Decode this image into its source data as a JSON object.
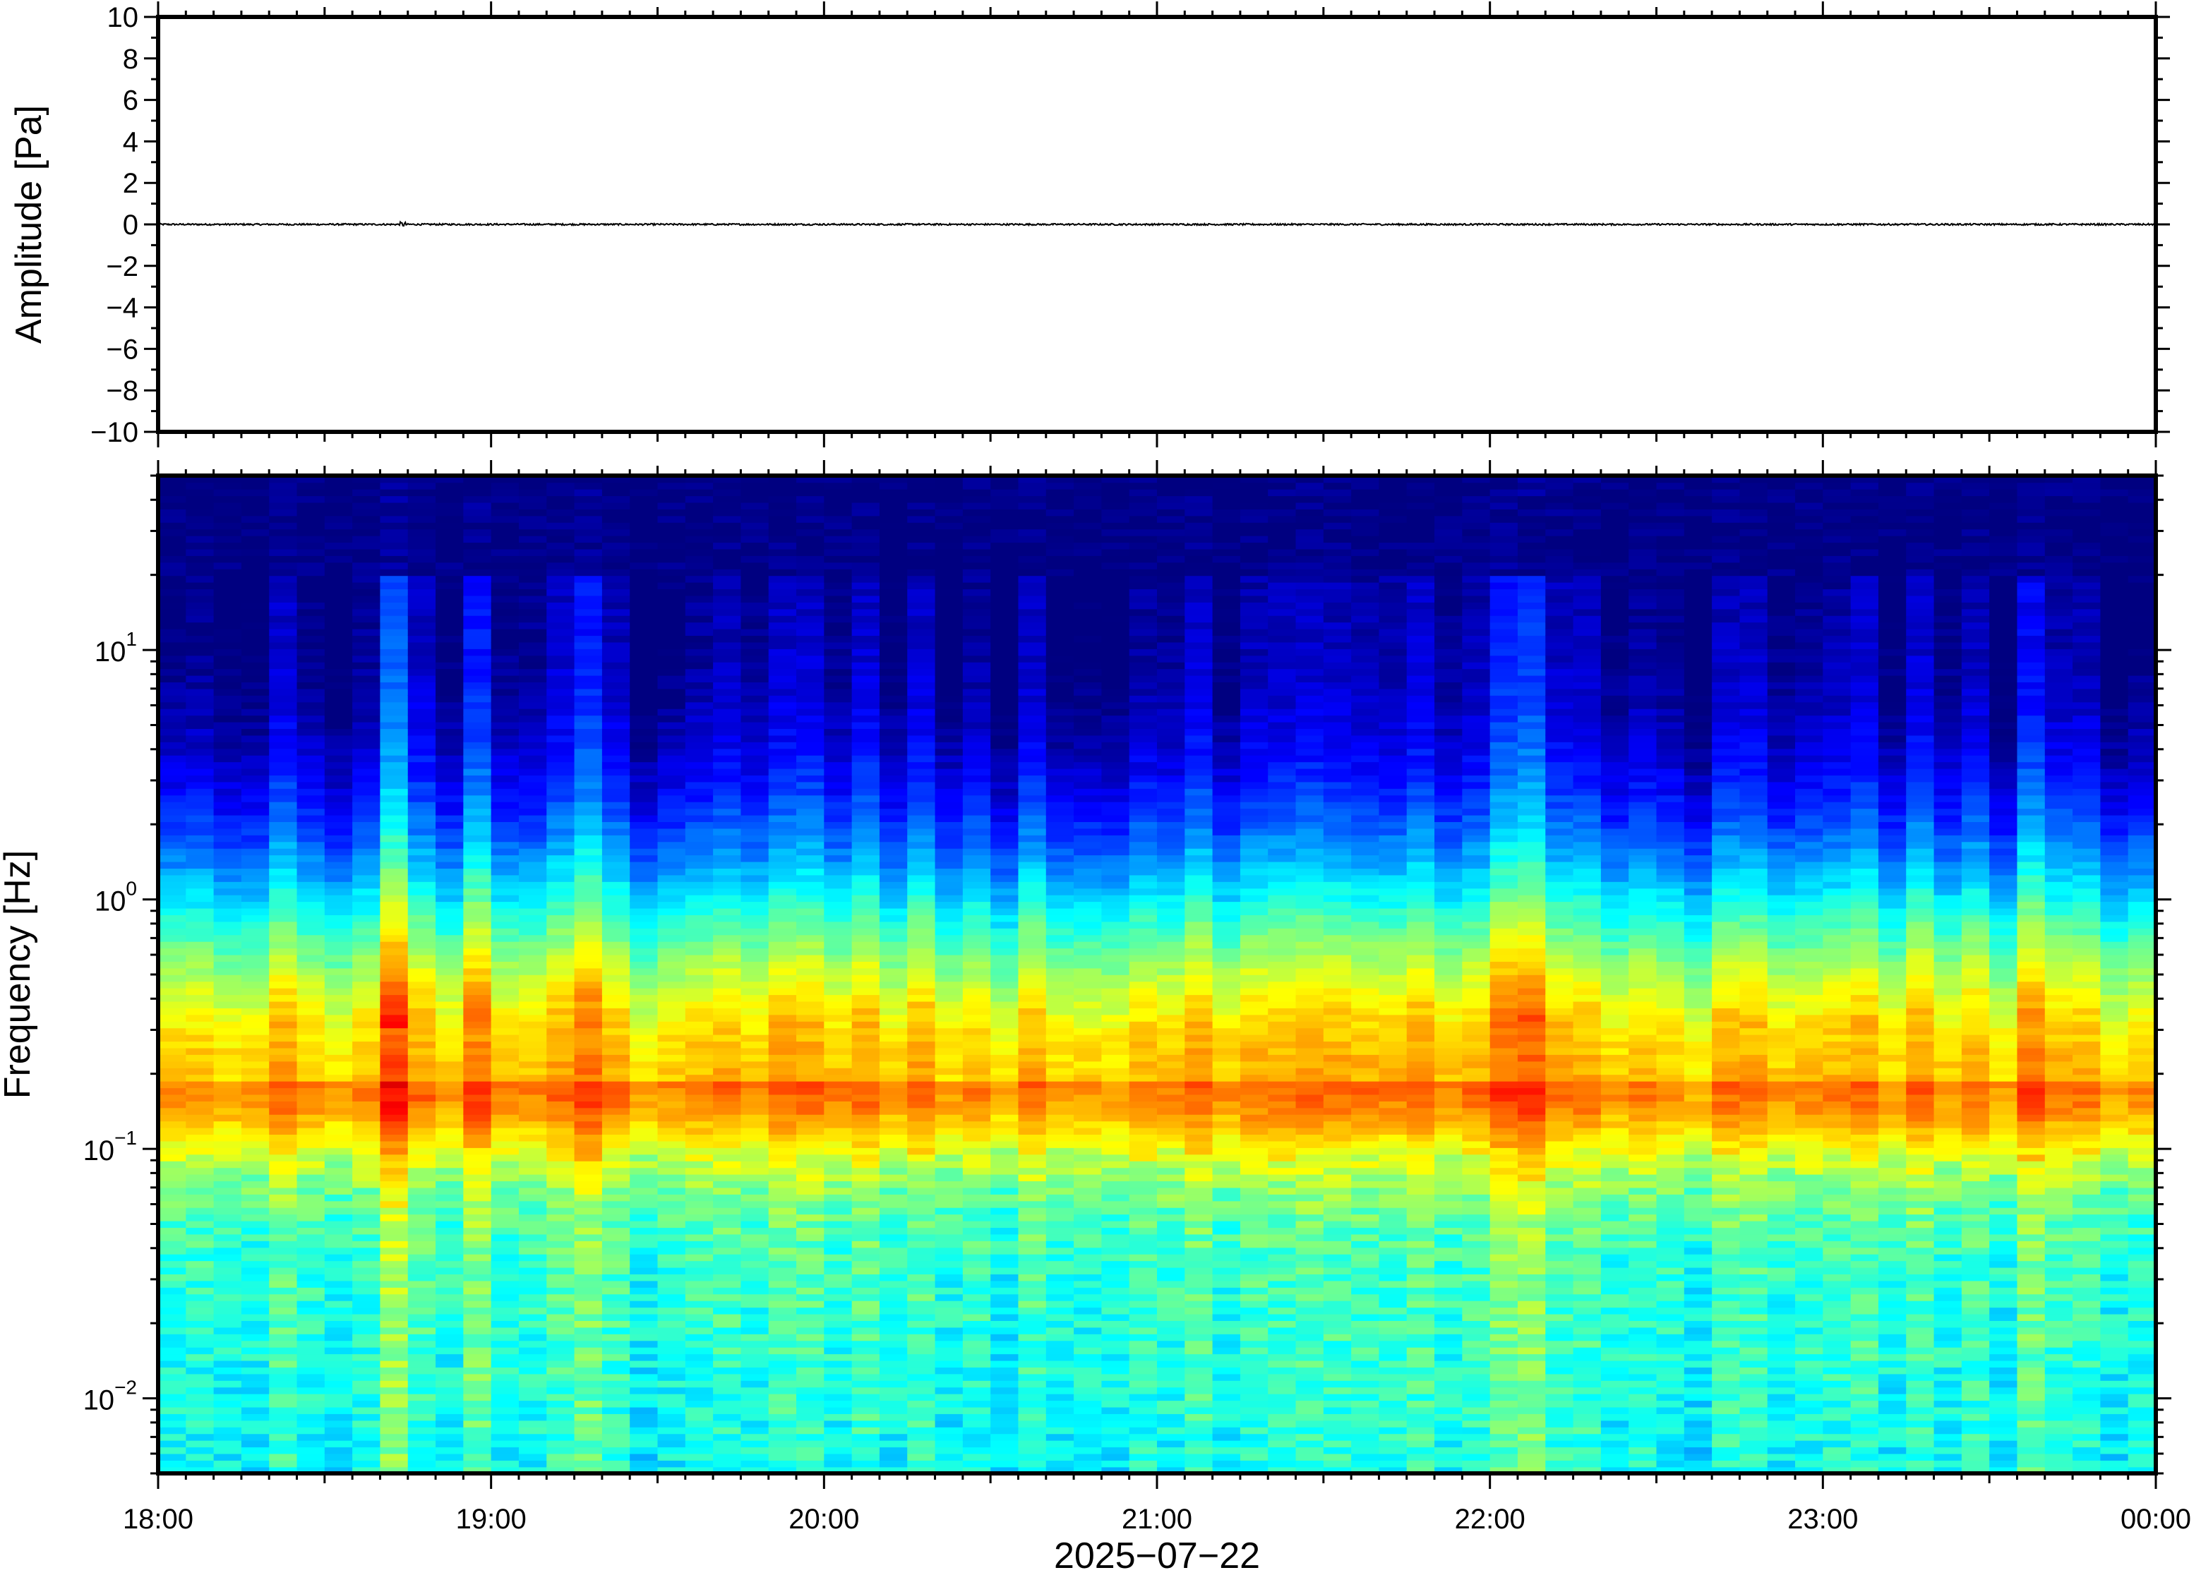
{
  "chart_data": [
    {
      "type": "line",
      "panel": "waveform",
      "ylabel": "Amplitude [Pa]",
      "ylim": [
        -10,
        10
      ],
      "yticks": [
        -10,
        -8,
        -6,
        -4,
        -2,
        0,
        2,
        4,
        6,
        8,
        10
      ],
      "ytick_labels": [
        "−10",
        "−8",
        "−6",
        "−4",
        "−2",
        "0",
        "2",
        "4",
        "6",
        "8",
        "10"
      ],
      "series": [
        {
          "x": [
            "18:00",
            "00:00"
          ],
          "values": [
            0.0,
            0.0
          ]
        }
      ],
      "grid": false
    },
    {
      "type": "heatmap",
      "panel": "spectrogram",
      "ylabel": "Frequency [Hz]",
      "yscale": "log",
      "ylim": [
        0.005,
        50
      ],
      "yticks": [
        0.01,
        0.1,
        1,
        10
      ],
      "ytick_labels": [
        {
          "base": "10",
          "exp": "−2"
        },
        {
          "base": "10",
          "exp": "−1"
        },
        {
          "base": "10",
          "exp": "0"
        },
        {
          "base": "10",
          "exp": "1"
        }
      ],
      "colormap": "jet",
      "peak_band_hz": [
        0.15,
        0.25
      ],
      "grid": false
    }
  ],
  "xaxis": {
    "xlabel": "2025−07−22",
    "xticks": [
      "18:00",
      "19:00",
      "20:00",
      "21:00",
      "22:00",
      "23:00",
      "00:00"
    ],
    "range": [
      "18:00",
      "00:00"
    ]
  }
}
